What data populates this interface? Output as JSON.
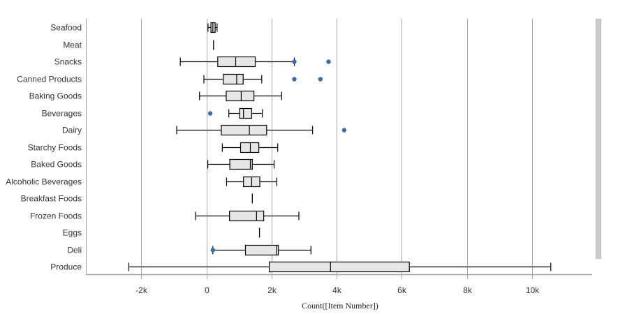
{
  "chart_data": {
    "type": "boxplot",
    "orientation": "horizontal",
    "xlabel": "Count([Item Number])",
    "xlim": [
      -3500,
      11800
    ],
    "ticks": [
      {
        "value": -2000,
        "label": "-2k"
      },
      {
        "value": 0,
        "label": "0"
      },
      {
        "value": 2000,
        "label": "2k"
      },
      {
        "value": 4000,
        "label": "4k"
      },
      {
        "value": 6000,
        "label": "6k"
      },
      {
        "value": 8000,
        "label": "8k"
      },
      {
        "value": 10000,
        "label": "10k"
      }
    ],
    "grid": true,
    "categories": [
      {
        "name": "Seafood",
        "min": 50,
        "q1": 140,
        "median": 200,
        "q3": 270,
        "max": 330,
        "outliers": []
      },
      {
        "name": "Meat",
        "min": 220,
        "q1": 220,
        "median": 220,
        "q3": 220,
        "max": 220,
        "outliers": []
      },
      {
        "name": "Snacks",
        "min": -800,
        "q1": 350,
        "median": 900,
        "q3": 1500,
        "max": 2700,
        "outliers": [
          2700,
          3750
        ]
      },
      {
        "name": "Canned Products",
        "min": -75,
        "q1": 520,
        "median": 930,
        "q3": 1130,
        "max": 1700,
        "outliers": [
          2700,
          3500
        ]
      },
      {
        "name": "Baking Goods",
        "min": -210,
        "q1": 610,
        "median": 1070,
        "q3": 1460,
        "max": 2310,
        "outliers": []
      },
      {
        "name": "Beverages",
        "min": 690,
        "q1": 1020,
        "median": 1140,
        "q3": 1390,
        "max": 1720,
        "outliers": [
          120
        ]
      },
      {
        "name": "Dairy",
        "min": -910,
        "q1": 460,
        "median": 1320,
        "q3": 1850,
        "max": 3260,
        "outliers": [
          4230
        ]
      },
      {
        "name": "Starchy Foods",
        "min": 490,
        "q1": 1050,
        "median": 1350,
        "q3": 1610,
        "max": 2190,
        "outliers": []
      },
      {
        "name": "Baked Goods",
        "min": 45,
        "q1": 720,
        "median": 1350,
        "q3": 1410,
        "max": 2080,
        "outliers": []
      },
      {
        "name": "Alcoholic Beverages",
        "min": 620,
        "q1": 1140,
        "median": 1390,
        "q3": 1640,
        "max": 2160,
        "outliers": []
      },
      {
        "name": "Breakfast Foods",
        "min": 1410,
        "q1": 1410,
        "median": 1410,
        "q3": 1410,
        "max": 1410,
        "outliers": []
      },
      {
        "name": "Frozen Foods",
        "min": -330,
        "q1": 710,
        "median": 1540,
        "q3": 1760,
        "max": 2840,
        "outliers": []
      },
      {
        "name": "Eggs",
        "min": 1630,
        "q1": 1630,
        "median": 1630,
        "q3": 1630,
        "max": 1630,
        "outliers": []
      },
      {
        "name": "Deli",
        "min": 200,
        "q1": 1200,
        "median": 2160,
        "q3": 2210,
        "max": 3210,
        "outliers": [
          200
        ]
      },
      {
        "name": "Produce",
        "min": -2380,
        "q1": 1930,
        "median": 3810,
        "q3": 6230,
        "max": 10570,
        "outliers": []
      }
    ],
    "colors": {
      "box_fill": "#e6e6e6",
      "box_stroke": "#000000",
      "outlier": "#3a6ea5",
      "grid": "#a6a6a6",
      "axis": "#a6a6a6"
    }
  }
}
